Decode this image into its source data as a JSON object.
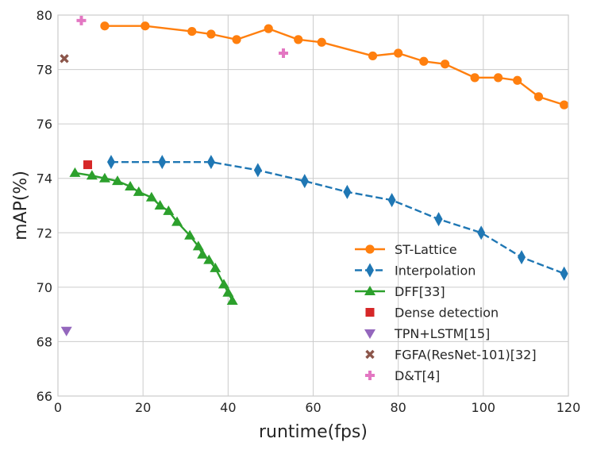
{
  "chart_data": {
    "type": "line",
    "xlabel": "runtime(fps)",
    "ylabel": "mAP(%)",
    "xlim": [
      0,
      120
    ],
    "ylim": [
      66,
      80
    ],
    "xticks": [
      0,
      20,
      40,
      60,
      80,
      100,
      120
    ],
    "yticks": [
      66,
      68,
      70,
      72,
      74,
      76,
      78,
      80
    ],
    "grid": true,
    "legend_position": "bottom-right",
    "series": [
      {
        "name": "ST-Lattice",
        "color": "#ff7f0e",
        "marker": "circle",
        "line": "solid",
        "x": [
          11,
          20.5,
          31.5,
          36,
          42,
          49.5,
          56.5,
          62,
          74,
          80,
          86,
          91,
          98,
          103.5,
          108,
          113,
          119
        ],
        "y": [
          79.6,
          79.6,
          79.4,
          79.3,
          79.1,
          79.5,
          79.1,
          79.0,
          78.5,
          78.6,
          78.3,
          78.2,
          77.7,
          77.7,
          77.6,
          77.0,
          76.7
        ]
      },
      {
        "name": "Interpolation",
        "color": "#1f77b4",
        "marker": "thin-diamond",
        "line": "dashed",
        "x": [
          12.5,
          24.5,
          36,
          47,
          58,
          68,
          78.5,
          89.5,
          99.5,
          109,
          119
        ],
        "y": [
          74.6,
          74.6,
          74.6,
          74.3,
          73.9,
          73.5,
          73.2,
          72.5,
          72.0,
          71.1,
          70.5
        ]
      },
      {
        "name": "DFF[33]",
        "color": "#2ca02c",
        "marker": "triangle-up",
        "line": "solid",
        "x": [
          4,
          8,
          11,
          14,
          17,
          19,
          22,
          24,
          26,
          28,
          31,
          33,
          34,
          35.5,
          37,
          39,
          40,
          41
        ],
        "y": [
          74.2,
          74.1,
          74.0,
          73.9,
          73.7,
          73.5,
          73.3,
          73.0,
          72.8,
          72.4,
          71.9,
          71.5,
          71.2,
          71.0,
          70.7,
          70.1,
          69.8,
          69.5
        ]
      },
      {
        "name": "Dense detection",
        "color": "#d62728",
        "marker": "square",
        "line": "none",
        "x": [
          7
        ],
        "y": [
          74.5
        ]
      },
      {
        "name": "TPN+LSTM[15]",
        "color": "#9467bd",
        "marker": "triangle-down",
        "line": "none",
        "x": [
          2
        ],
        "y": [
          68.4
        ]
      },
      {
        "name": "FGFA(ResNet-101)[32]",
        "color": "#8c564b",
        "marker": "x",
        "line": "none",
        "x": [
          1.5
        ],
        "y": [
          78.4
        ]
      },
      {
        "name": "D&T[4]",
        "color": "#e377c2",
        "marker": "plus",
        "line": "none",
        "x": [
          5.5,
          53
        ],
        "y": [
          79.8,
          78.6
        ]
      }
    ]
  }
}
